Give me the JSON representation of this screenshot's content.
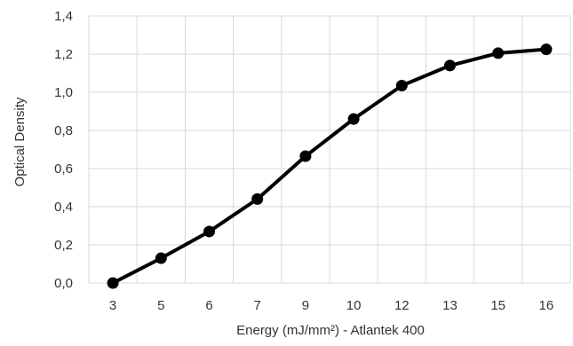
{
  "chart_data": {
    "type": "line",
    "title": "",
    "xlabel": "Energy (mJ/mm²) - Atlantek 400",
    "ylabel": "Optical Density",
    "categories": [
      "3",
      "5",
      "6",
      "7",
      "9",
      "10",
      "12",
      "13",
      "15",
      "16"
    ],
    "series": [
      {
        "values": [
          0.0,
          0.13,
          0.27,
          0.44,
          0.665,
          0.86,
          1.035,
          1.14,
          1.205,
          1.225
        ]
      }
    ],
    "ylim": [
      0,
      1.4
    ],
    "y_ticks": [
      "0,0",
      "0,2",
      "0,4",
      "0,6",
      "0,8",
      "1,0",
      "1,2",
      "1,4"
    ],
    "grid": true,
    "legend": "none",
    "colors": {
      "line": "#000000",
      "marker": "#000000",
      "grid": "#d9d9d9",
      "text": "#333333"
    }
  }
}
